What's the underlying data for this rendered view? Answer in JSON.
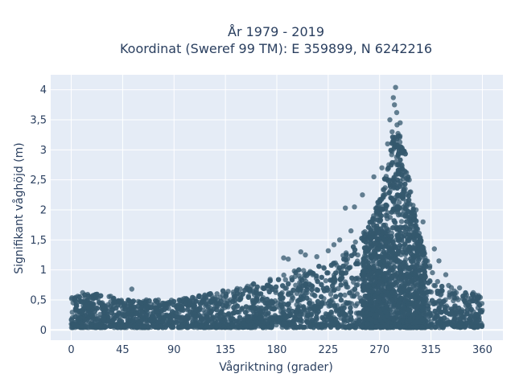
{
  "chart_data": {
    "type": "scatter",
    "title": "År 1979 - 2019",
    "subtitle": "Koordinat (Sweref 99 TM): E 359899, N 6242216",
    "xlabel": "Vågriktning (grader)",
    "ylabel": "Signifikant våghöjd (m)",
    "xlim": [
      -18,
      378
    ],
    "ylim": [
      -0.17,
      4.25
    ],
    "x_ticks": [
      0,
      45,
      90,
      135,
      180,
      225,
      270,
      315,
      360
    ],
    "y_ticks": [
      0,
      0.5,
      1,
      1.5,
      2,
      2.5,
      3,
      3.5,
      4
    ],
    "y_tick_labels": [
      "0",
      "0,5",
      "1",
      "1,5",
      "2",
      "2,5",
      "3",
      "3,5",
      "4"
    ],
    "grid": true,
    "marker_color": "#34586e",
    "plot_bg": "#e5ecf6",
    "envelope": {
      "direction": [
        0,
        10,
        20,
        30,
        45,
        60,
        75,
        90,
        105,
        120,
        135,
        150,
        165,
        180,
        195,
        210,
        225,
        240,
        250,
        260,
        265,
        270,
        275,
        280,
        285,
        290,
        295,
        300,
        305,
        310,
        315,
        320,
        330,
        340,
        350,
        360
      ],
      "max_height": [
        0.6,
        0.6,
        0.6,
        0.58,
        0.52,
        0.5,
        0.5,
        0.5,
        0.55,
        0.6,
        0.68,
        0.72,
        0.8,
        0.9,
        1.0,
        1.05,
        1.1,
        1.3,
        1.5,
        1.75,
        1.95,
        2.2,
        2.6,
        3.1,
        3.5,
        3.3,
        2.6,
        2.0,
        1.6,
        1.3,
        1.05,
        0.9,
        0.75,
        0.65,
        0.6,
        0.58
      ]
    },
    "outliers": [
      {
        "x": 284,
        "y": 4.04
      },
      {
        "x": 282,
        "y": 3.87
      },
      {
        "x": 283,
        "y": 3.75
      },
      {
        "x": 285,
        "y": 3.62
      },
      {
        "x": 279,
        "y": 3.5
      },
      {
        "x": 288,
        "y": 3.45
      },
      {
        "x": 281,
        "y": 3.3
      },
      {
        "x": 277,
        "y": 3.1
      },
      {
        "x": 290,
        "y": 3.0
      },
      {
        "x": 272,
        "y": 2.7
      },
      {
        "x": 296,
        "y": 2.5
      },
      {
        "x": 265,
        "y": 2.55
      },
      {
        "x": 255,
        "y": 2.25
      },
      {
        "x": 248,
        "y": 2.05
      },
      {
        "x": 240,
        "y": 2.03
      },
      {
        "x": 302,
        "y": 2.0
      },
      {
        "x": 308,
        "y": 1.8
      },
      {
        "x": 245,
        "y": 1.65
      },
      {
        "x": 235,
        "y": 1.5
      },
      {
        "x": 230,
        "y": 1.42
      },
      {
        "x": 225,
        "y": 1.32
      },
      {
        "x": 318,
        "y": 1.35
      },
      {
        "x": 322,
        "y": 1.15
      },
      {
        "x": 201,
        "y": 1.3
      },
      {
        "x": 205,
        "y": 1.25
      },
      {
        "x": 190,
        "y": 1.18
      },
      {
        "x": 186,
        "y": 1.2
      },
      {
        "x": 215,
        "y": 1.22
      },
      {
        "x": 328,
        "y": 0.92
      },
      {
        "x": 340,
        "y": 0.7
      },
      {
        "x": 352,
        "y": 0.62
      },
      {
        "x": 53,
        "y": 0.68
      },
      {
        "x": 10,
        "y": 0.62
      }
    ]
  }
}
